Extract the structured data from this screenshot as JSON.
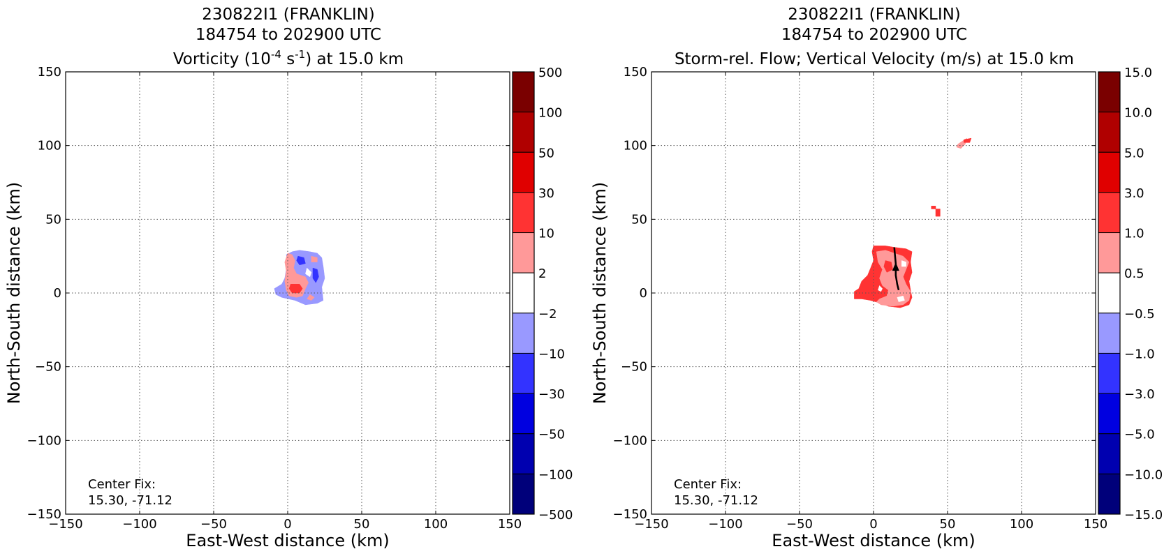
{
  "chart_data": [
    {
      "type": "heatmap",
      "title_lines": [
        "230822I1 (FRANKLIN)",
        "184754 to 202900 UTC"
      ],
      "title_var": {
        "pre": "Vorticity (10",
        "sup1": "-4",
        "mid": " s",
        "sup2": "-1",
        "post": ") at 15.0 km"
      },
      "xlabel": "East-West distance (km)",
      "ylabel": "North-South distance (km)",
      "xlim": [
        -150,
        150
      ],
      "ylim": [
        -150,
        150
      ],
      "xticks": [
        -150,
        -100,
        -50,
        0,
        50,
        100,
        150
      ],
      "yticks": [
        -150,
        -100,
        -50,
        0,
        50,
        100,
        150
      ],
      "xtick_labels": [
        "−150",
        "−100",
        "−50",
        "0",
        "50",
        "100",
        "150"
      ],
      "ytick_labels": [
        "−150",
        "−100",
        "−50",
        "0",
        "50",
        "100",
        "150"
      ],
      "grid": true,
      "annotation": [
        "Center Fix:",
        "15.30, -71.12"
      ],
      "colorbar": {
        "labels": [
          "500",
          "100",
          "50",
          "30",
          "10",
          "2",
          "−2",
          "−10",
          "−30",
          "−50",
          "−100",
          "−500"
        ],
        "colors": [
          "#7a0000",
          "#b00000",
          "#e00000",
          "#ff3333",
          "#ff9999",
          "#ffffff",
          "#9999ff",
          "#3333ff",
          "#0000e0",
          "#0000b0",
          "#00007a"
        ]
      },
      "regions": [
        {
          "color": "#9999ff",
          "points": [
            [
              3,
              28
            ],
            [
              8,
              29
            ],
            [
              15,
              28
            ],
            [
              20,
              27
            ],
            [
              23,
              24
            ],
            [
              24,
              18
            ],
            [
              25,
              10
            ],
            [
              23,
              4
            ],
            [
              24,
              -5
            ],
            [
              20,
              -7
            ],
            [
              12,
              -8
            ],
            [
              5,
              -5
            ],
            [
              -4,
              -3
            ],
            [
              -8,
              -1
            ],
            [
              -9,
              3
            ],
            [
              -4,
              6
            ],
            [
              -2,
              10
            ],
            [
              -1,
              16
            ],
            [
              0,
              22
            ],
            [
              -1,
              26
            ]
          ]
        },
        {
          "color": "#ff9999",
          "points": [
            [
              0,
              27
            ],
            [
              3,
              26
            ],
            [
              5,
              22
            ],
            [
              4,
              17
            ],
            [
              6,
              13
            ],
            [
              12,
              11
            ],
            [
              14,
              7
            ],
            [
              12,
              3
            ],
            [
              10,
              -2
            ],
            [
              6,
              -3
            ],
            [
              1,
              -2
            ],
            [
              -1,
              2
            ],
            [
              -2,
              8
            ],
            [
              -1,
              15
            ],
            [
              -2,
              21
            ]
          ]
        },
        {
          "color": "#ff9999",
          "points": [
            [
              15,
              -1
            ],
            [
              18,
              -3
            ],
            [
              16,
              -5
            ],
            [
              13,
              -4
            ]
          ]
        },
        {
          "color": "#ffffff",
          "points": [
            [
              13,
              17
            ],
            [
              16,
              14
            ],
            [
              15,
              11
            ],
            [
              12,
              13
            ]
          ]
        },
        {
          "color": "#3333ff",
          "points": [
            [
              7,
              25
            ],
            [
              11,
              24
            ],
            [
              12,
              20
            ],
            [
              8,
              19
            ],
            [
              6,
              22
            ]
          ]
        },
        {
          "color": "#3333ff",
          "points": [
            [
              17,
              17
            ],
            [
              20,
              16
            ],
            [
              21,
              11
            ],
            [
              19,
              7
            ],
            [
              17,
              10
            ]
          ]
        },
        {
          "color": "#ff3333",
          "points": [
            [
              2,
              6
            ],
            [
              8,
              6
            ],
            [
              10,
              3
            ],
            [
              8,
              0
            ],
            [
              3,
              0
            ],
            [
              1,
              3
            ]
          ]
        },
        {
          "color": "#ff9999",
          "points": [
            [
              16,
              25
            ],
            [
              20,
              24
            ],
            [
              20,
              21
            ],
            [
              16,
              21
            ]
          ]
        }
      ]
    },
    {
      "type": "heatmap",
      "title_lines": [
        "230822I1 (FRANKLIN)",
        "184754 to 202900 UTC"
      ],
      "title_var": {
        "pre": "Storm-rel. Flow; Vertical Velocity (m/s) at 15.0 km",
        "sup1": "",
        "mid": "",
        "sup2": "",
        "post": ""
      },
      "xlabel": "East-West distance (km)",
      "ylabel": "North-South distance (km)",
      "xlim": [
        -150,
        150
      ],
      "ylim": [
        -150,
        150
      ],
      "xticks": [
        -150,
        -100,
        -50,
        0,
        50,
        100,
        150
      ],
      "yticks": [
        -150,
        -100,
        -50,
        0,
        50,
        100,
        150
      ],
      "xtick_labels": [
        "−150",
        "−100",
        "−50",
        "0",
        "50",
        "100",
        "150"
      ],
      "ytick_labels": [
        "−150",
        "−100",
        "−50",
        "0",
        "50",
        "100",
        "150"
      ],
      "grid": true,
      "annotation": [
        "Center Fix:",
        "15.30, -71.12"
      ],
      "colorbar": {
        "labels": [
          "15.0",
          "10.0",
          "5.0",
          "3.0",
          "1.0",
          "0.5",
          "−0.5",
          "−1.0",
          "−3.0",
          "−5.0",
          "−10.0",
          "−15.0"
        ],
        "colors": [
          "#7a0000",
          "#b00000",
          "#e00000",
          "#ff3333",
          "#ff9999",
          "#ffffff",
          "#9999ff",
          "#3333ff",
          "#0000e0",
          "#0000b0",
          "#00007a"
        ]
      },
      "regions": [
        {
          "color": "#ff3333",
          "points": [
            [
              0,
              32
            ],
            [
              8,
              32
            ],
            [
              14,
              31
            ],
            [
              22,
              30
            ],
            [
              26,
              28
            ],
            [
              25,
              21
            ],
            [
              26,
              14
            ],
            [
              24,
              8
            ],
            [
              25,
              2
            ],
            [
              26,
              -3
            ],
            [
              24,
              -8
            ],
            [
              18,
              -10
            ],
            [
              10,
              -9
            ],
            [
              5,
              -7
            ],
            [
              -2,
              -5
            ],
            [
              -8,
              -4
            ],
            [
              -13,
              -4
            ],
            [
              -13,
              1
            ],
            [
              -10,
              3
            ],
            [
              -8,
              8
            ],
            [
              -4,
              12
            ],
            [
              -2,
              17
            ],
            [
              0,
              22
            ],
            [
              -1,
              28
            ]
          ]
        },
        {
          "color": "#ff9999",
          "points": [
            [
              2,
              28
            ],
            [
              8,
              29
            ],
            [
              14,
              27
            ],
            [
              20,
              25
            ],
            [
              24,
              21
            ],
            [
              22,
              16
            ],
            [
              20,
              11
            ],
            [
              22,
              6
            ],
            [
              25,
              1
            ],
            [
              24,
              -5
            ],
            [
              20,
              -8
            ],
            [
              13,
              -9
            ],
            [
              5,
              -8
            ],
            [
              2,
              -6
            ],
            [
              4,
              -4
            ],
            [
              9,
              -2
            ],
            [
              10,
              2
            ],
            [
              6,
              5
            ],
            [
              4,
              10
            ],
            [
              6,
              16
            ],
            [
              3,
              21
            ]
          ]
        },
        {
          "color": "#ff3333",
          "points": [
            [
              8,
              22
            ],
            [
              12,
              21
            ],
            [
              13,
              16
            ],
            [
              9,
              14
            ],
            [
              7,
              18
            ]
          ]
        },
        {
          "color": "#ffffff",
          "points": [
            [
              4,
              5
            ],
            [
              6,
              3
            ],
            [
              5,
              1
            ],
            [
              3,
              2
            ]
          ]
        },
        {
          "color": "#ffffff",
          "points": [
            [
              16,
              -3
            ],
            [
              20,
              -2
            ],
            [
              21,
              -5
            ],
            [
              17,
              -6
            ]
          ]
        },
        {
          "color": "#ffffff",
          "points": [
            [
              19,
              22
            ],
            [
              22,
              21
            ],
            [
              22,
              18
            ],
            [
              19,
              18
            ]
          ]
        },
        {
          "color": "#ff9999",
          "points": [
            [
              57,
              101
            ],
            [
              60,
              103
            ],
            [
              63,
              105
            ],
            [
              62,
              101
            ],
            [
              59,
              98
            ],
            [
              56,
              99
            ]
          ]
        },
        {
          "color": "#ff3333",
          "points": [
            [
              61,
              104
            ],
            [
              66,
              105
            ],
            [
              65,
              102
            ],
            [
              61,
              102
            ]
          ]
        },
        {
          "color": "#ff3333",
          "points": [
            [
              39,
              59
            ],
            [
              42,
              59
            ],
            [
              42,
              57
            ],
            [
              39,
              57
            ]
          ]
        },
        {
          "color": "#ff3333",
          "points": [
            [
              42,
              57
            ],
            [
              45,
              57
            ],
            [
              45,
              52
            ],
            [
              42,
              52
            ]
          ]
        }
      ],
      "flow_arrow": {
        "path": [
          [
            14,
            31
          ],
          [
            15,
            20
          ],
          [
            15,
            12
          ],
          [
            16,
            6
          ],
          [
            17,
            2
          ]
        ],
        "head": [
          15,
          17
        ]
      }
    }
  ]
}
